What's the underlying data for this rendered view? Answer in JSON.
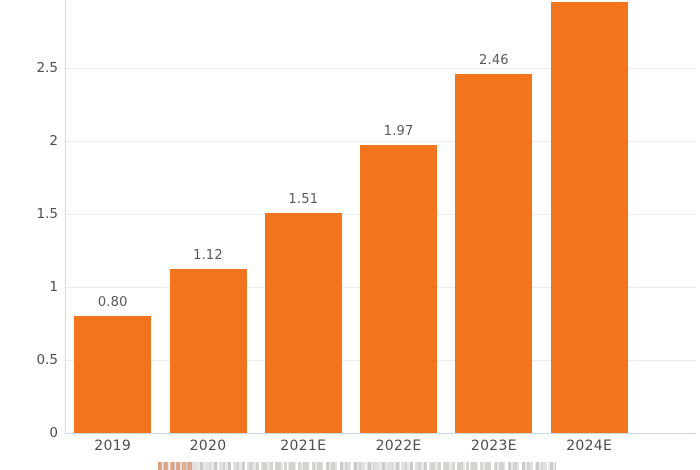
{
  "page": {
    "background": "#ffffff"
  },
  "chart_data": {
    "type": "bar",
    "title": "",
    "xlabel": "",
    "ylabel": "",
    "legend": "none",
    "grid": "horizontal",
    "categories": [
      "2019",
      "2020",
      "2021E",
      "2022E",
      "2023E",
      "2024E"
    ],
    "values": [
      0.8,
      1.12,
      1.51,
      1.97,
      2.46,
      2.95
    ],
    "value_labels": [
      "0.80",
      "1.12",
      "1.51",
      "1.97",
      "2.46",
      ""
    ],
    "ylim": [
      0,
      3
    ],
    "yticks": [
      0,
      0.5,
      1,
      1.5,
      2,
      2.5
    ],
    "ytick_labels": [
      "0",
      "0.5",
      "1",
      "1.5",
      "2",
      "2.5"
    ],
    "colors": {
      "bar": "#F2751D",
      "grid": "#ECECEC",
      "axis": "#D9D9D9",
      "baseline": "#C9D6E3",
      "tick_text": "#4D4D4D",
      "value_text": "#595959"
    },
    "notes": {
      "bar_2024E": "tallest bar reaches top edge of the image; its numeric label is cut off (≈2.95 by axis scale)",
      "caption": "a caption text line at the bottom edge is clipped by the image border and is illegible"
    }
  }
}
